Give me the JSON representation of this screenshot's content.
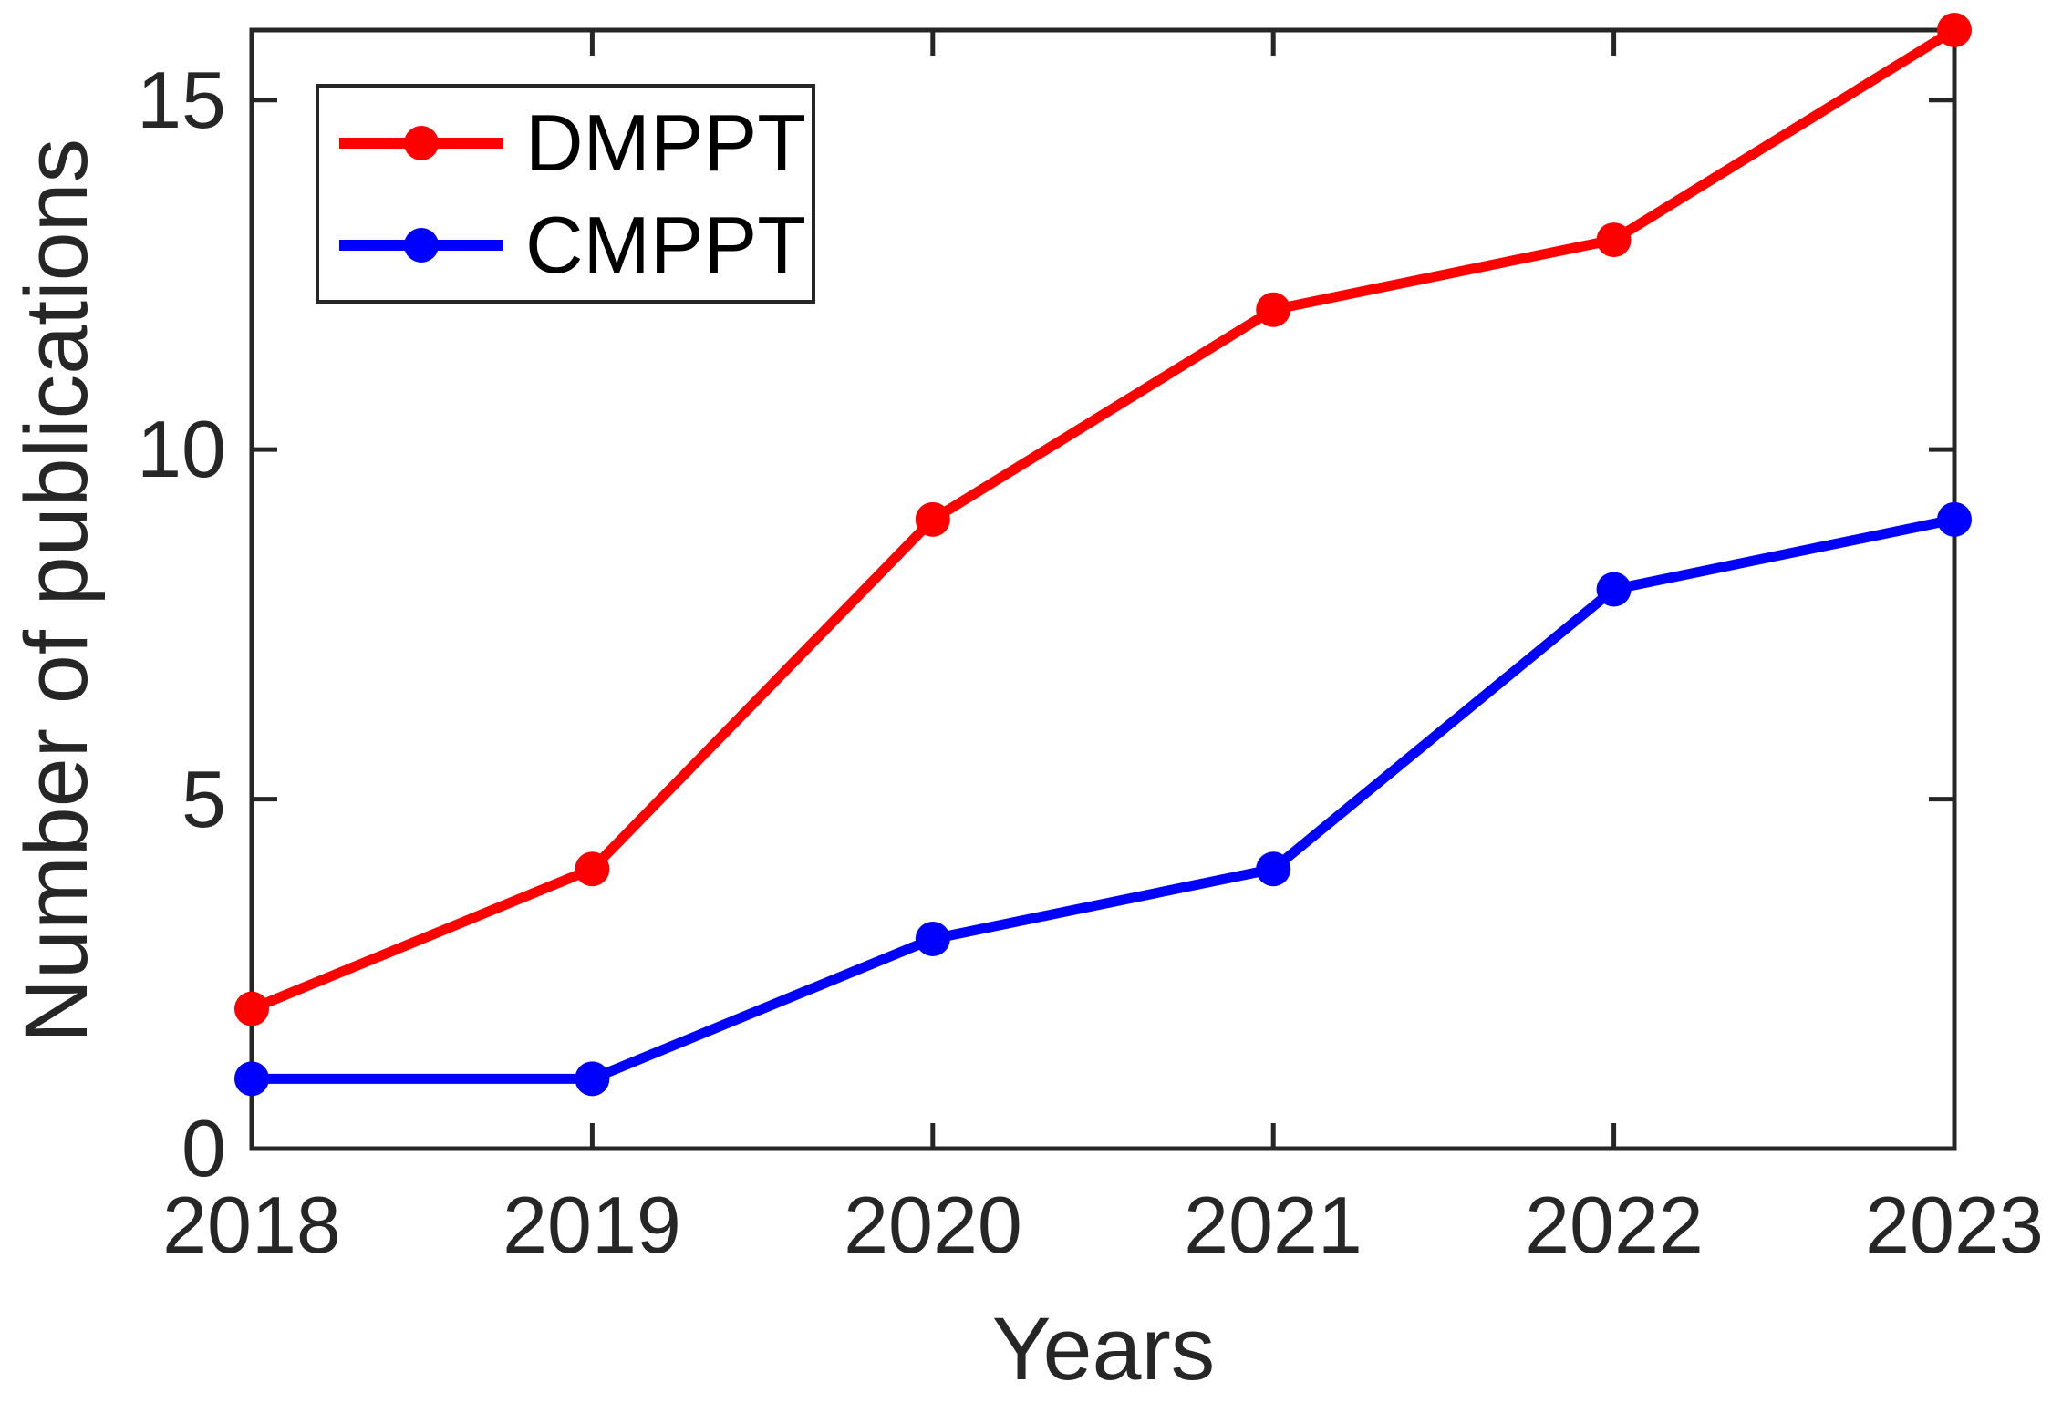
{
  "chart_data": {
    "type": "line",
    "title": "",
    "xlabel": "Years",
    "ylabel": "Number of publications",
    "x": [
      2018,
      2019,
      2020,
      2021,
      2022,
      2023
    ],
    "xtick_labels": [
      "2018",
      "2019",
      "2020",
      "2021",
      "2022",
      "2023"
    ],
    "yticks": [
      0,
      5,
      10,
      15
    ],
    "ytick_labels": [
      "0",
      "5",
      "10",
      "15"
    ],
    "xlim": [
      2018,
      2023
    ],
    "ylim": [
      0,
      16
    ],
    "grid": false,
    "legend_position": "top-left",
    "axis_color": "#262626",
    "series": [
      {
        "name": "DMPPT",
        "color": "#ff0000",
        "marker": "circle",
        "values": [
          2,
          4,
          9,
          12,
          13,
          16
        ]
      },
      {
        "name": "CMPPT",
        "color": "#0000ff",
        "marker": "circle",
        "values": [
          1,
          1,
          3,
          4,
          8,
          9
        ]
      }
    ]
  }
}
